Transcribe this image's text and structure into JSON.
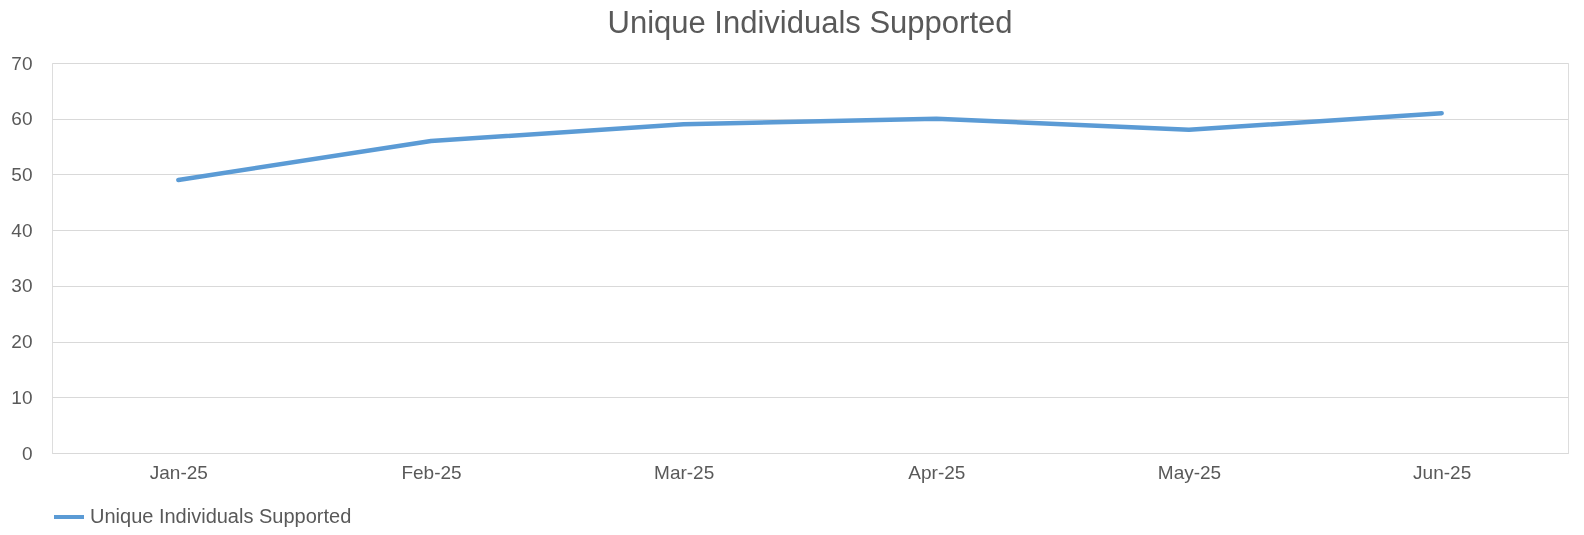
{
  "chart_data": {
    "type": "line",
    "title": "Unique Individuals Supported",
    "categories": [
      "Jan-25",
      "Feb-25",
      "Mar-25",
      "Apr-25",
      "May-25",
      "Jun-25"
    ],
    "series": [
      {
        "name": "Unique Individuals Supported",
        "color": "#5b9bd5",
        "values": [
          49,
          56,
          59,
          60,
          58,
          61
        ]
      }
    ],
    "ylim": [
      0,
      70
    ],
    "yticks": [
      0,
      10,
      20,
      30,
      40,
      50,
      60,
      70
    ],
    "grid": "y",
    "legend": "bottom"
  }
}
